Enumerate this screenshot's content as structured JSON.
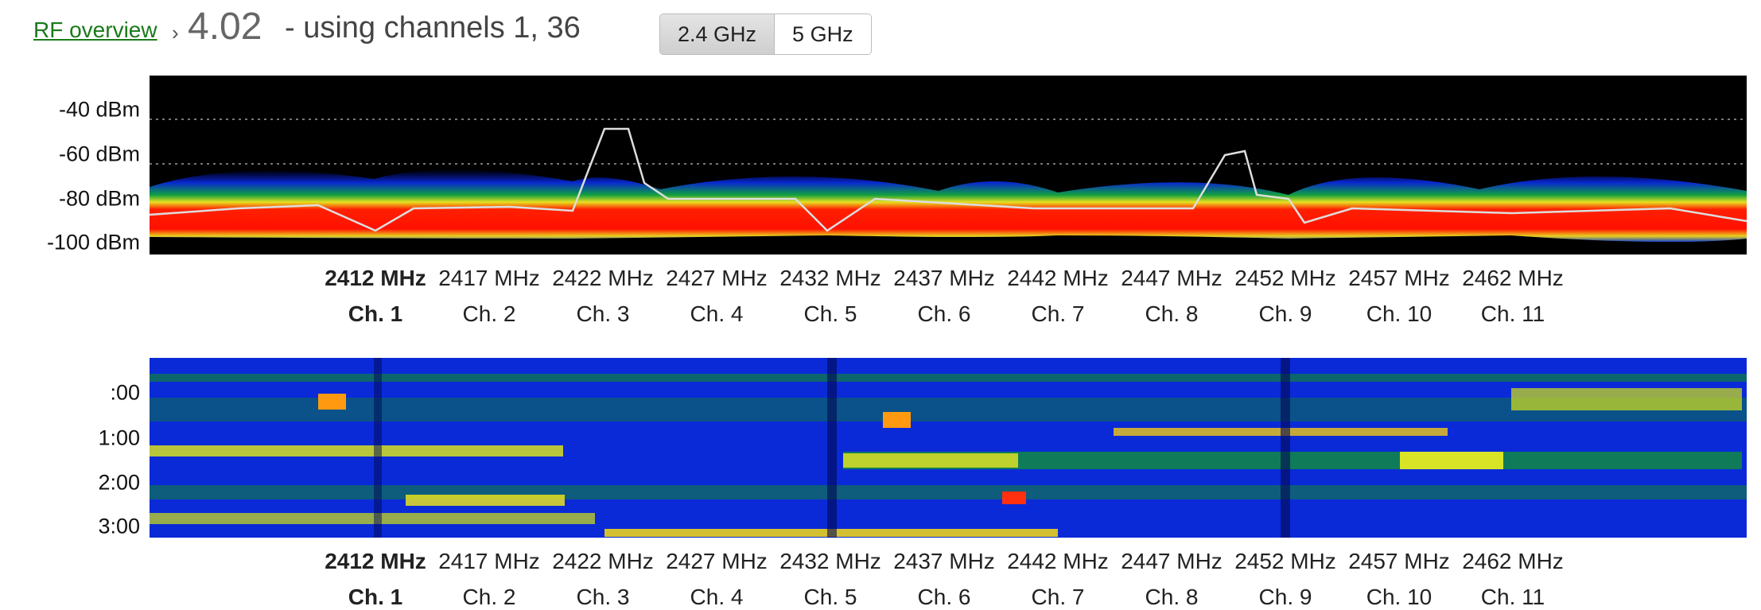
{
  "header": {
    "link": "RF overview",
    "separator": "›",
    "version": "4.02",
    "subtitle": "- using channels 1, 36"
  },
  "tabs": [
    "2.4 GHz",
    "5 GHz"
  ],
  "spectrum": {
    "y_labels": [
      "-40 dBm",
      "-60 dBm",
      "-80 dBm",
      "-100 dBm"
    ],
    "frequencies": [
      "2412 MHz",
      "2417 MHz",
      "2422 MHz",
      "2427 MHz",
      "2432 MHz",
      "2437 MHz",
      "2442 MHz",
      "2447 MHz",
      "2452 MHz",
      "2457 MHz",
      "2462 MHz"
    ],
    "channels": [
      "Ch. 1",
      "Ch. 2",
      "Ch. 3",
      "Ch. 4",
      "Ch. 5",
      "Ch. 6",
      "Ch. 7",
      "Ch. 8",
      "Ch. 9",
      "Ch. 10",
      "Ch. 11"
    ]
  },
  "waterfall": {
    "time_labels": [
      ":00",
      "1:00",
      "2:00",
      "3:00"
    ],
    "frequencies": [
      "2412 MHz",
      "2417 MHz",
      "2422 MHz",
      "2427 MHz",
      "2432 MHz",
      "2437 MHz",
      "2442 MHz",
      "2447 MHz",
      "2452 MHz",
      "2457 MHz",
      "2462 MHz"
    ],
    "channels": [
      "Ch. 1",
      "Ch. 2",
      "Ch. 3",
      "Ch. 4",
      "Ch. 5",
      "Ch. 6",
      "Ch. 7",
      "Ch. 8",
      "Ch. 9",
      "Ch. 10",
      "Ch. 11"
    ]
  }
}
